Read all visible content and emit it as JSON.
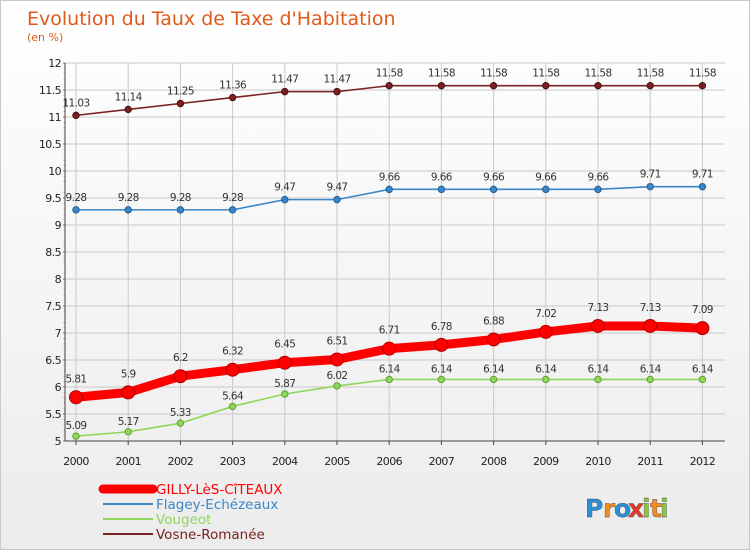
{
  "chart_data": {
    "type": "line",
    "title": "Evolution du Taux de Taxe d'Habitation",
    "subtitle": "(en %)",
    "x": [
      "2000",
      "2001",
      "2002",
      "2003",
      "2004",
      "2005",
      "2006",
      "2007",
      "2008",
      "2009",
      "2010",
      "2011",
      "2012"
    ],
    "ylim": [
      5,
      12
    ],
    "yticks": [
      "5",
      "5.5",
      "6",
      "6.5",
      "7",
      "7.5",
      "8",
      "8.5",
      "9",
      "9.5",
      "10",
      "10.5",
      "11",
      "11.5",
      "12"
    ],
    "grid": true,
    "legend_position": "bottom-left",
    "series": [
      {
        "name": "GILLY-LèS-CîTEAUX",
        "color": "#ff0000",
        "labels": [
          "5.81",
          "5.9",
          "6.2",
          "6.32",
          "6.45",
          "6.51",
          "6.71",
          "6.78",
          "6.88",
          "7.02",
          "7.13",
          "7.13",
          "7.09"
        ],
        "values": [
          5.81,
          5.9,
          6.2,
          6.32,
          6.45,
          6.51,
          6.71,
          6.78,
          6.88,
          7.02,
          7.13,
          7.13,
          7.09
        ]
      },
      {
        "name": "Flagey-Echézeaux",
        "color": "#3a86c8",
        "labels": [
          "9.28",
          "9.28",
          "9.28",
          "9.28",
          "9.47",
          "9.47",
          "9.66",
          "9.66",
          "9.66",
          "9.66",
          "9.66",
          "9.71",
          "9.71"
        ],
        "values": [
          9.28,
          9.28,
          9.28,
          9.28,
          9.47,
          9.47,
          9.66,
          9.66,
          9.66,
          9.66,
          9.66,
          9.71,
          9.71
        ]
      },
      {
        "name": "Vougeot",
        "color": "#8fd65a",
        "labels": [
          "5.09",
          "5.17",
          "5.33",
          "5.64",
          "5.87",
          "6.02",
          "6.14",
          "6.14",
          "6.14",
          "6.14",
          "6.14",
          "6.14",
          "6.14"
        ],
        "values": [
          5.09,
          5.17,
          5.33,
          5.64,
          5.87,
          6.02,
          6.14,
          6.14,
          6.14,
          6.14,
          6.14,
          6.14,
          6.14
        ]
      },
      {
        "name": "Vosne-Romanée",
        "color": "#7a2020",
        "labels": [
          "11.03",
          "11.14",
          "11.25",
          "11.36",
          "11.47",
          "11.47",
          "11.58",
          "11.58",
          "11.58",
          "11.58",
          "11.58",
          "11.58",
          "11.58"
        ],
        "values": [
          11.03,
          11.14,
          11.25,
          11.36,
          11.47,
          11.47,
          11.58,
          11.58,
          11.58,
          11.58,
          11.58,
          11.58,
          11.58
        ]
      }
    ]
  },
  "brand": {
    "logo_letters": [
      "P",
      "r",
      "o",
      "x",
      "i",
      "t",
      "i"
    ],
    "logo_colors": [
      "#2a8fd6",
      "#f28c1e",
      "#2a8fd6",
      "#e8372c",
      "#8cc63f",
      "#f28c1e",
      "#8cc63f"
    ]
  }
}
